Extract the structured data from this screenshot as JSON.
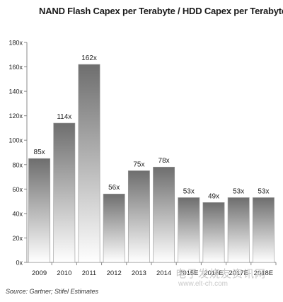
{
  "source": "Source: Gartner; Stifel Estimates",
  "watermark": {
    "text": "电子发烧友资讯网",
    "url": "www.elt-ch.com"
  },
  "colors": {
    "bar_top": "#6e6e6e",
    "bar_bottom": "#ffffff",
    "axis": "#888888",
    "text": "#222222"
  },
  "chart_data": {
    "type": "bar",
    "title": "NAND Flash Capex per Terabyte / HDD Capex per Terabyte",
    "categories": [
      "2009",
      "2010",
      "2011",
      "2012",
      "2013",
      "2014",
      "2015E",
      "2016E",
      "2017E",
      "2018E"
    ],
    "values": [
      85,
      114,
      162,
      56,
      75,
      78,
      53,
      49,
      53,
      53
    ],
    "data_labels": [
      "85x",
      "114x",
      "162x",
      "56x",
      "75x",
      "78x",
      "53x",
      "49x",
      "53x",
      "53x"
    ],
    "yticks": [
      "0x",
      "20x",
      "40x",
      "60x",
      "80x",
      "100x",
      "120x",
      "140x",
      "160x",
      "180x"
    ],
    "ylim": [
      0,
      180
    ],
    "xlabel": "",
    "ylabel": "",
    "grid": false,
    "legend": "none"
  }
}
